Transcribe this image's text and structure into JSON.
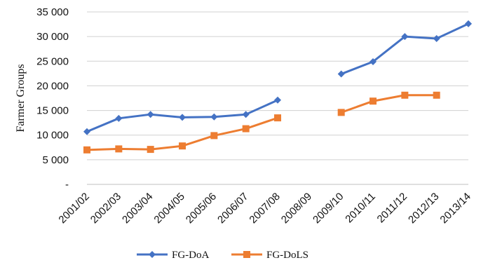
{
  "chart_data": {
    "type": "line",
    "title": "",
    "xlabel": "",
    "ylabel": "Farmer Groups",
    "categories": [
      "2001/02",
      "2002/03",
      "2003/04",
      "2004/05",
      "2005/06",
      "2006/07",
      "2007/08",
      "2008/09",
      "2009/10",
      "2010/11",
      "2011/12",
      "2012/13",
      "2013/14"
    ],
    "ylim": [
      0,
      35000
    ],
    "yticks": [
      0,
      5000,
      10000,
      15000,
      20000,
      25000,
      30000,
      35000
    ],
    "ytick_labels": [
      "-",
      "5 000",
      "10 000",
      "15 000",
      "20 000",
      "25 000",
      "30 000",
      "35 000"
    ],
    "grid": true,
    "legend_position": "bottom",
    "series": [
      {
        "name": "FG-DoA",
        "color": "#4472C4",
        "marker": "diamond",
        "values": [
          10700,
          13400,
          14200,
          13600,
          13700,
          14200,
          17100,
          null,
          22400,
          24900,
          30000,
          29600,
          32600
        ]
      },
      {
        "name": "FG-DoLS",
        "color": "#ED7D31",
        "marker": "square",
        "values": [
          7000,
          7200,
          7100,
          7800,
          9900,
          11300,
          13500,
          null,
          14600,
          16900,
          18100,
          18100,
          null
        ]
      }
    ]
  }
}
